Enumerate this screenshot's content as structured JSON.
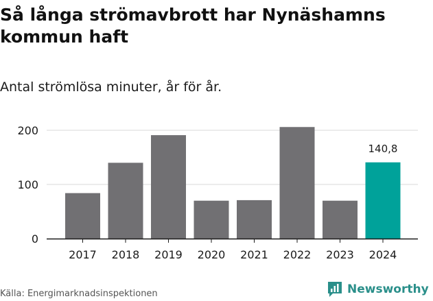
{
  "title": "Så långa strömavbrott har Nynäshamns kommun haft",
  "subtitle": "Antal strömlösa minuter, år för år.",
  "source": "Källa: Energimarknadsinspektionen",
  "brand": {
    "name": "Newsworthy",
    "icon": "newsworthy-logo-icon",
    "color": "#2a8f8a"
  },
  "chart_data": {
    "type": "bar",
    "categories": [
      "2017",
      "2018",
      "2019",
      "2020",
      "2021",
      "2022",
      "2023",
      "2024"
    ],
    "values": [
      84,
      140,
      191,
      70,
      71,
      206,
      70,
      140.8
    ],
    "value_labels": [
      "",
      "",
      "",
      "",
      "",
      "",
      "",
      "140,8"
    ],
    "highlight_index": 7,
    "colors": {
      "default": "#717073",
      "highlight": "#00a29a"
    },
    "yticks": [
      0,
      100,
      200
    ],
    "ylim": [
      0,
      206
    ],
    "grid": true,
    "xlabel": "",
    "ylabel": ""
  }
}
